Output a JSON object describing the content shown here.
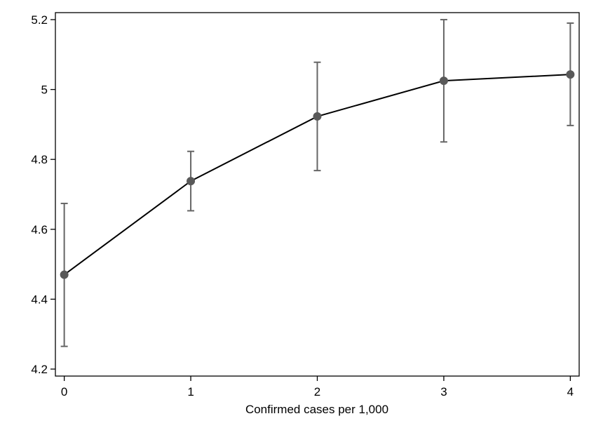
{
  "chart_data": {
    "type": "line",
    "title": "",
    "xlabel": "Confirmed cases per 1,000",
    "ylabel": "",
    "x": [
      0,
      1,
      2,
      3,
      4
    ],
    "series": [
      {
        "values": [
          4.47,
          4.738,
          4.923,
          5.025,
          5.043
        ],
        "lower": [
          4.265,
          4.653,
          4.768,
          4.85,
          4.897
        ],
        "upper": [
          4.674,
          4.823,
          5.078,
          5.2,
          5.19
        ]
      }
    ],
    "xlim": [
      -0.07,
      4.07
    ],
    "ylim": [
      4.18,
      5.22
    ],
    "xticks": [
      0,
      1,
      2,
      3,
      4
    ],
    "xtick_labels": [
      "0",
      "1",
      "2",
      "3",
      "4"
    ],
    "yticks": [
      4.2,
      4.4,
      4.6,
      4.8,
      5.0,
      5.2
    ],
    "ytick_labels": [
      "4.2",
      "4.4",
      "4.6",
      "4.8",
      "5",
      "5.2"
    ],
    "grid": false,
    "legend": "none",
    "colors": {
      "line": "#000000",
      "marker": "#595959",
      "error_bar": "#666666"
    }
  }
}
